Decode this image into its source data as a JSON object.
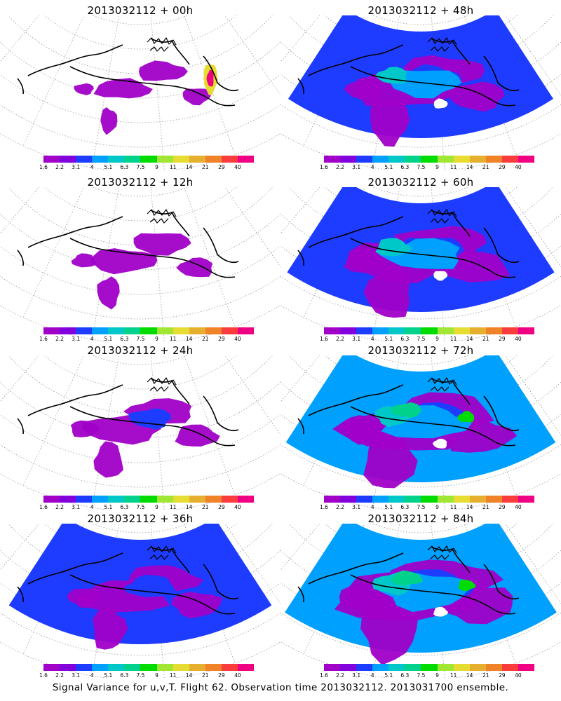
{
  "panels": [
    {
      "title": "2013032112 + 00h",
      "level": 0
    },
    {
      "title": "2013032112 + 48h",
      "level": 4
    },
    {
      "title": "2013032112 + 12h",
      "level": 1
    },
    {
      "title": "2013032112 + 60h",
      "level": 5
    },
    {
      "title": "2013032112 + 24h",
      "level": 2
    },
    {
      "title": "2013032112 + 72h",
      "level": 6
    },
    {
      "title": "2013032112 + 36h",
      "level": 3
    },
    {
      "title": "2013032112 + 84h",
      "level": 7
    }
  ],
  "colorbar": {
    "colors": [
      "#a000c8",
      "#8200dc",
      "#1e3cff",
      "#00a0ff",
      "#00c8c8",
      "#00d28c",
      "#00dc00",
      "#a0e632",
      "#e6dc32",
      "#e6af2d",
      "#f08228",
      "#fa3c3c",
      "#f00082"
    ],
    "labels": [
      "1.6",
      "2.2",
      "3.1",
      "4",
      "5.1",
      "6.3",
      "7.5",
      "9",
      "11",
      "14",
      "21",
      "29",
      "40"
    ]
  },
  "caption": "Signal Variance for u,v,T. Flight 62. Observation time 2013032112. 2013031700 ensemble."
}
